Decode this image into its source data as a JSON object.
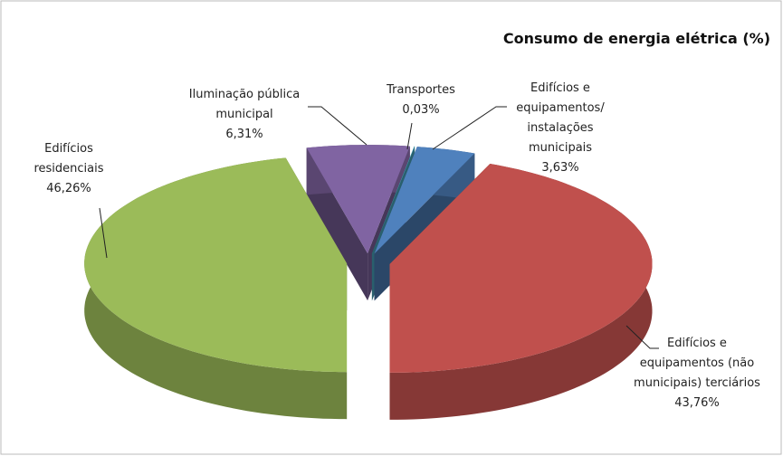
{
  "chart_data": {
    "type": "pie",
    "title": "Consumo de energia elétrica (%)",
    "categories": [
      "Edifícios residenciais",
      "Iluminação pública municipal",
      "Transportes",
      "Edifícios e equipamentos/ instalações municipais",
      "Edifícios e equipamentos (não municipais) terciários"
    ],
    "values": [
      46.26,
      6.31,
      0.03,
      3.63,
      43.76
    ],
    "value_labels": [
      "46,26%",
      "6,31%",
      "0,03%",
      "3,63%",
      "43,76%"
    ],
    "colors": [
      "#9bbb59",
      "#8064a2",
      "#4bacc6",
      "#4f81bd",
      "#c0504d"
    ]
  }
}
